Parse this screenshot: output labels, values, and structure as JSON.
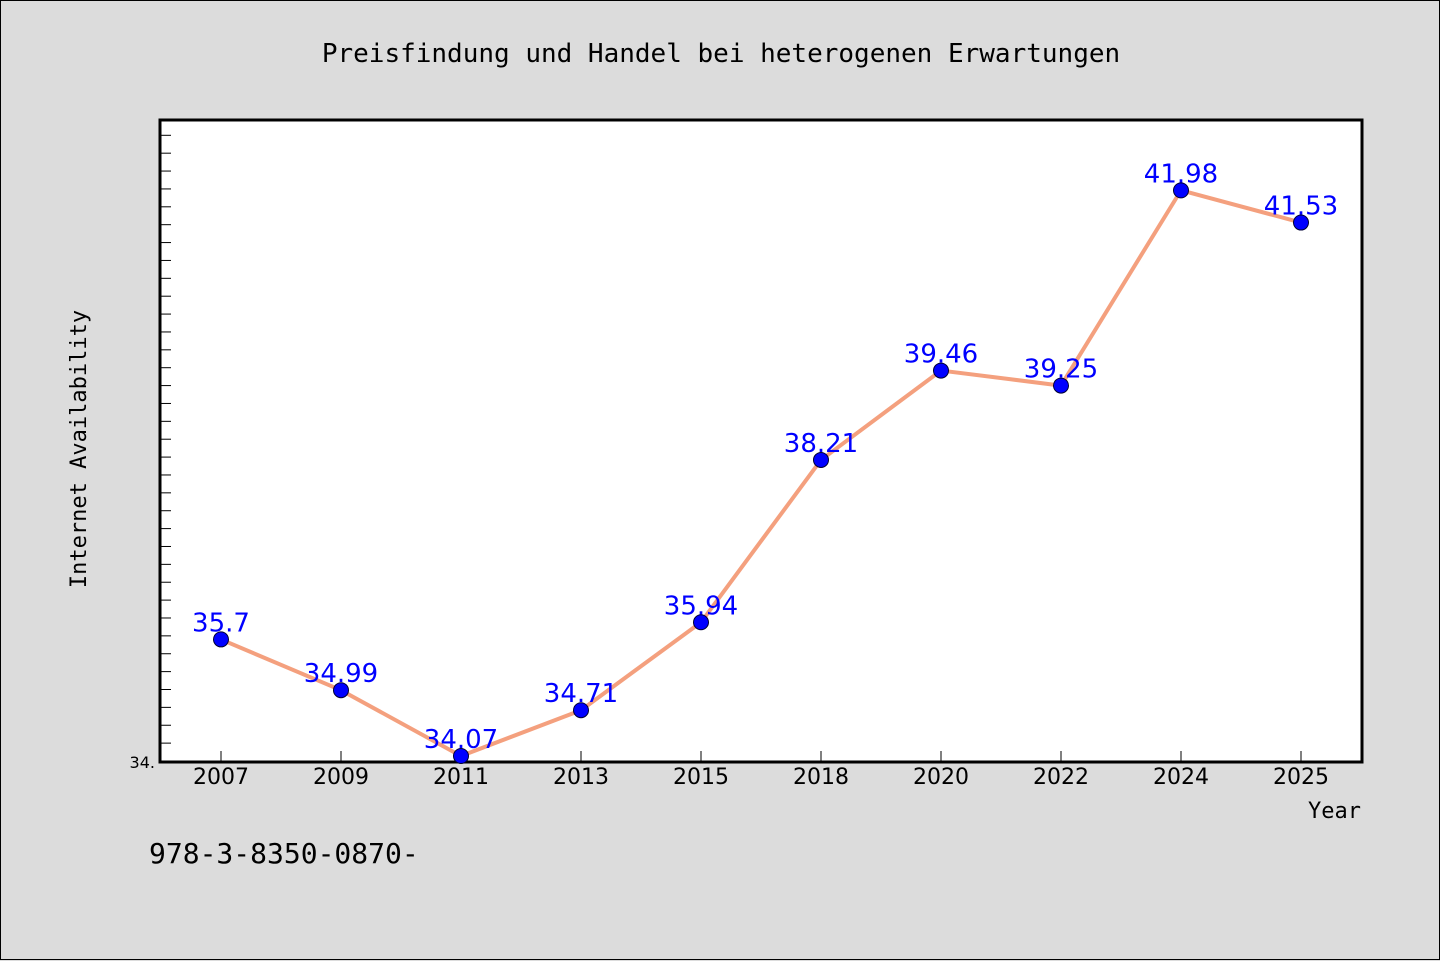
{
  "chart_data": {
    "type": "line",
    "title": "Preisfindung und Handel bei heterogenen Erwartungen",
    "xlabel": "Year",
    "ylabel": "Internet Availability",
    "categories": [
      "2007",
      "2009",
      "2011",
      "2013",
      "2015",
      "2018",
      "2020",
      "2022",
      "2024",
      "2025"
    ],
    "series": [
      {
        "values": [
          35.7,
          34.99,
          34.07,
          34.71,
          35.94,
          38.21,
          39.46,
          39.25,
          41.98,
          41.53
        ]
      }
    ],
    "data_labels": [
      "35.7",
      "34.99",
      "34.07",
      "34.71",
      "35.94",
      "38.21",
      "39.46",
      "39.25",
      "41.98",
      "41.53"
    ],
    "ylim": [
      34.0,
      42.95
    ],
    "y_min_label": "34.",
    "grid": false,
    "line_color": "#f4a07e",
    "marker_color": "#0000ff",
    "label_color": "#0000ff",
    "footer_text": "978-3-8350-0870-"
  }
}
